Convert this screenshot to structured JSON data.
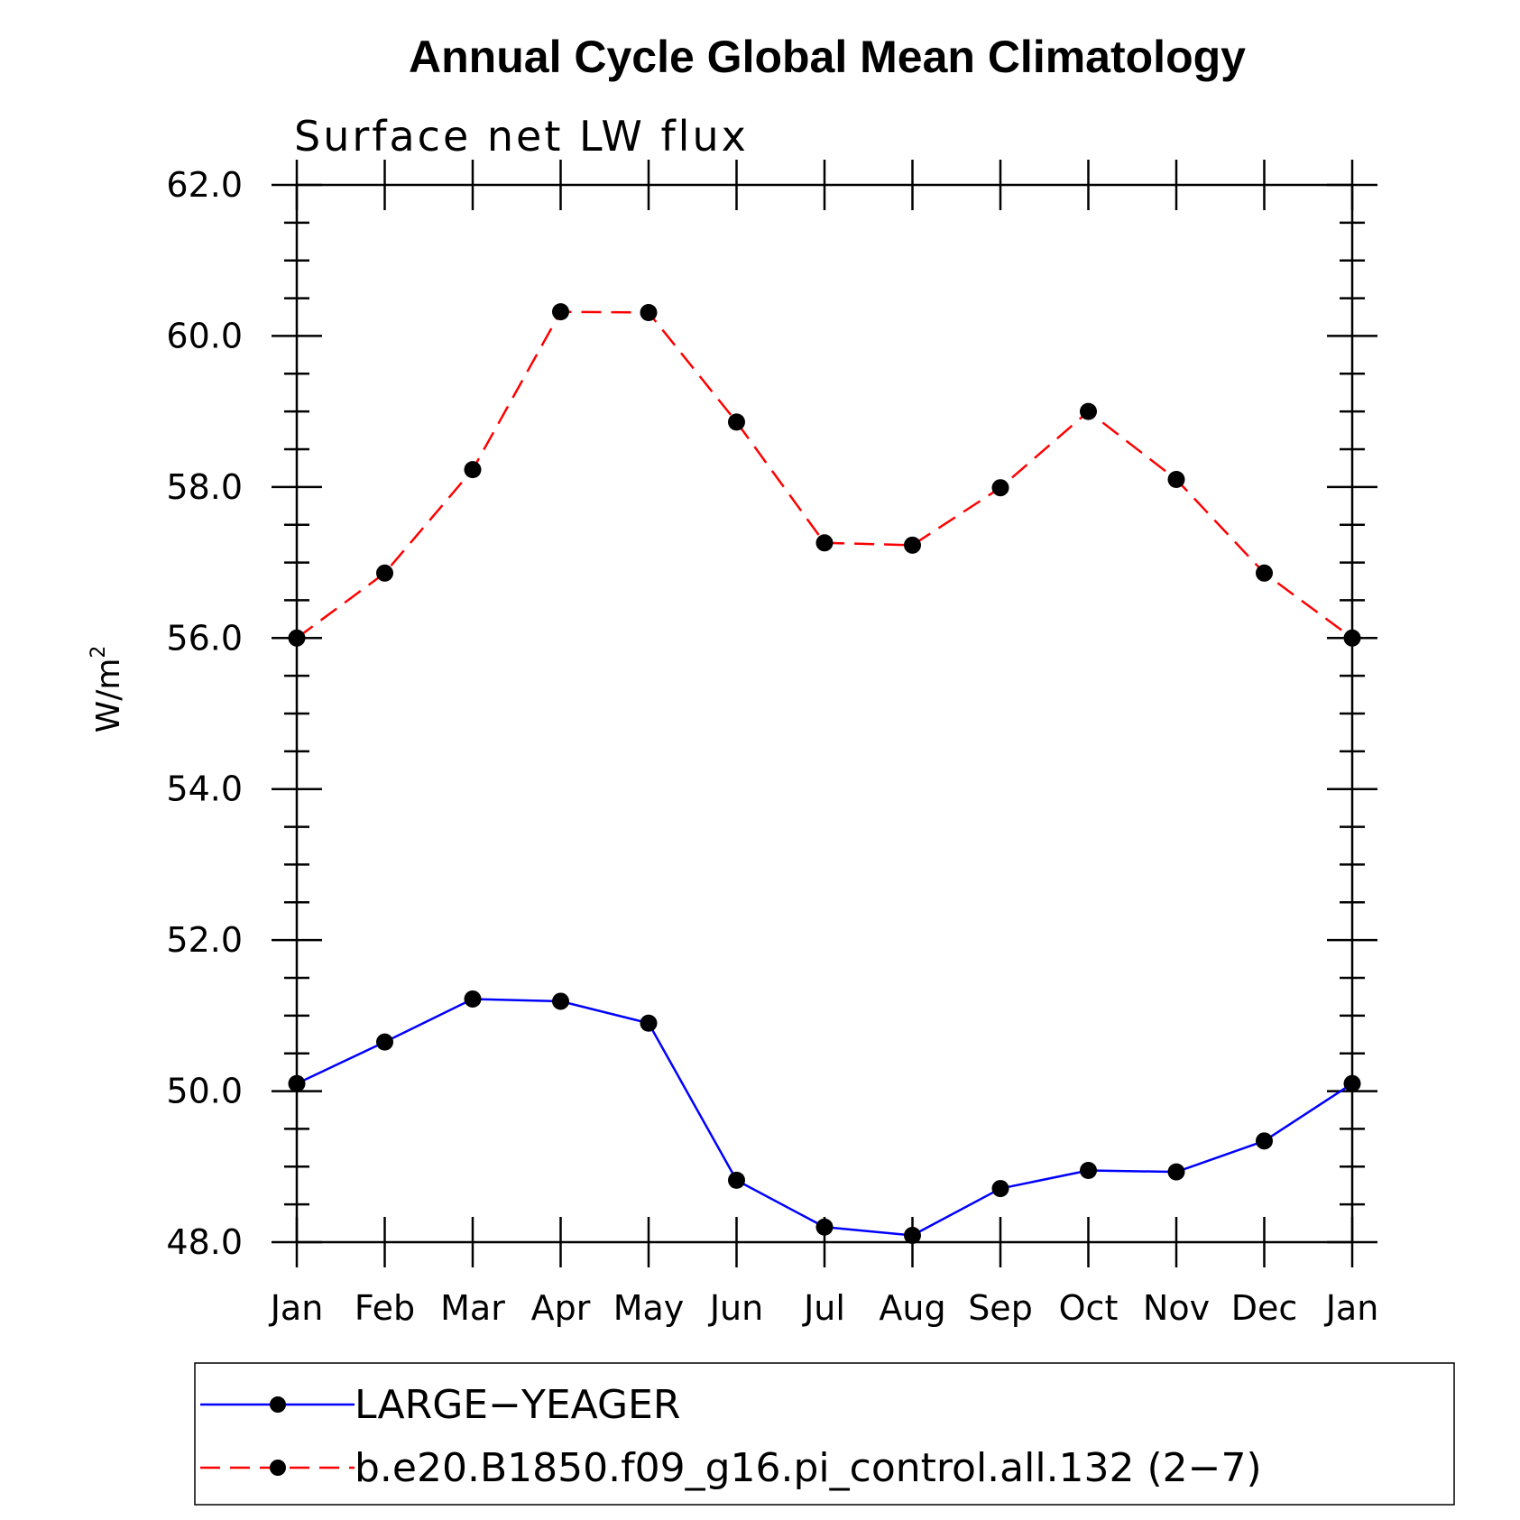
{
  "chart_data": {
    "type": "line",
    "title": "Annual Cycle Global Mean Climatology",
    "subtitle": "Surface net LW flux",
    "xlabel": "",
    "ylabel": "W/m",
    "ylabel_superscript": "2",
    "categories": [
      "Jan",
      "Feb",
      "Mar",
      "Apr",
      "May",
      "Jun",
      "Jul",
      "Aug",
      "Sep",
      "Oct",
      "Nov",
      "Dec",
      "Jan"
    ],
    "ylim": [
      48.0,
      62.0
    ],
    "yticks": [
      "48.0",
      "50.0",
      "52.0",
      "54.0",
      "56.0",
      "58.0",
      "60.0",
      "62.0"
    ],
    "series": [
      {
        "name": "LARGE−YEAGER",
        "color": "#0000ff",
        "dash": "solid",
        "values": [
          50.1,
          50.65,
          51.22,
          51.19,
          50.9,
          48.82,
          48.2,
          48.09,
          48.71,
          48.95,
          48.93,
          49.34,
          50.1
        ]
      },
      {
        "name": "b.e20.B1850.f09_g16.pi_control.all.132 (2−7)",
        "color": "#ff0000",
        "dash": "dashed",
        "values": [
          56.0,
          56.86,
          58.23,
          60.32,
          60.31,
          58.86,
          57.26,
          57.23,
          57.99,
          59.0,
          58.1,
          56.86,
          56.0
        ]
      }
    ],
    "marker": "filled-circle",
    "grid": false,
    "legend_placement": "bottom"
  }
}
